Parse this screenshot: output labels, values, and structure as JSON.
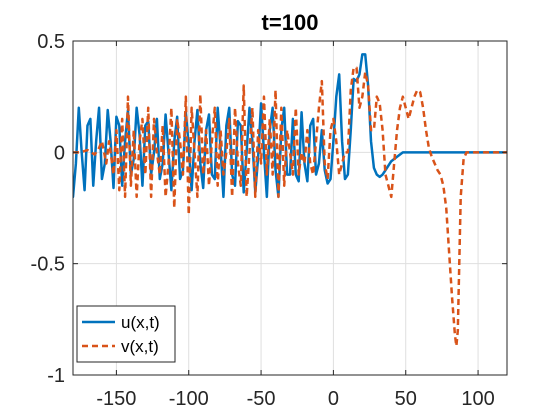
{
  "chart_data": {
    "type": "line",
    "title": "t=100",
    "xlabel": "",
    "ylabel": "",
    "xlim": [
      -180,
      120
    ],
    "ylim": [
      -1,
      0.5
    ],
    "xticks": [
      -150,
      -100,
      -50,
      0,
      50,
      100
    ],
    "xtick_labels": [
      "-150",
      "-100",
      "-50",
      "0",
      "50",
      "100"
    ],
    "yticks": [
      -1,
      -0.5,
      0,
      0.5
    ],
    "ytick_labels": [
      "-1",
      "-0.5",
      "0",
      "0.5"
    ],
    "grid": true,
    "legend_position": "bottom-left",
    "series": [
      {
        "name": "u(x,t)",
        "color": "#0072BD",
        "style": "solid",
        "x": [
          -180,
          -178,
          -176,
          -174,
          -172,
          -170,
          -168,
          -166,
          -164,
          -162,
          -160,
          -158,
          -156,
          -154,
          -152,
          -150,
          -148,
          -146,
          -144,
          -142,
          -140,
          -138,
          -136,
          -134,
          -132,
          -130,
          -128,
          -126,
          -124,
          -122,
          -120,
          -118,
          -116,
          -114,
          -112,
          -110,
          -108,
          -106,
          -104,
          -102,
          -100,
          -98,
          -96,
          -94,
          -92,
          -90,
          -88,
          -86,
          -84,
          -82,
          -80,
          -78,
          -76,
          -74,
          -72,
          -70,
          -68,
          -66,
          -64,
          -62,
          -60,
          -58,
          -56,
          -54,
          -52,
          -50,
          -48,
          -46,
          -44,
          -42,
          -40,
          -38,
          -36,
          -34,
          -32,
          -30,
          -28,
          -26,
          -24,
          -22,
          -20,
          -18,
          -16,
          -14,
          -12,
          -10,
          -8,
          -6,
          -4,
          -2,
          0,
          2,
          4,
          6,
          8,
          10,
          12,
          14,
          16,
          18,
          20,
          22,
          24,
          26,
          28,
          30,
          32,
          34,
          36,
          38,
          40,
          44,
          48,
          52,
          56,
          60,
          64,
          70,
          80,
          90,
          100,
          110,
          120
        ],
        "y": [
          -0.2,
          -0.05,
          0.2,
          0.0,
          -0.17,
          0.12,
          0.15,
          -0.15,
          0.05,
          0.2,
          -0.12,
          -0.05,
          0.19,
          0.05,
          -0.16,
          0.16,
          0.12,
          -0.15,
          0.05,
          0.19,
          -0.1,
          -0.03,
          0.2,
          0.08,
          -0.15,
          0.12,
          0.14,
          -0.1,
          0.0,
          0.15,
          -0.12,
          -0.05,
          0.17,
          0.0,
          -0.17,
          0.05,
          0.16,
          -0.12,
          -0.08,
          0.18,
          0.03,
          -0.17,
          0.05,
          0.19,
          -0.05,
          -0.16,
          0.1,
          0.17,
          -0.1,
          -0.12,
          0.2,
          0.02,
          -0.2,
          0.12,
          0.2,
          -0.1,
          -0.15,
          0.14,
          0.12,
          -0.18,
          0.0,
          0.2,
          0.05,
          -0.18,
          -0.02,
          0.22,
          0.0,
          -0.2,
          0.1,
          0.2,
          -0.08,
          -0.2,
          0.1,
          0.2,
          -0.1,
          -0.1,
          0.15,
          -0.1,
          -0.13,
          0.18,
          -0.05,
          -0.13,
          0.12,
          0.15,
          -0.1,
          -0.05,
          0.1,
          -0.08,
          -0.14,
          -0.12,
          0.05,
          0.25,
          0.35,
          0.05,
          -0.12,
          -0.1,
          0.1,
          0.33,
          0.32,
          0.35,
          0.44,
          0.44,
          0.3,
          0.05,
          -0.07,
          -0.1,
          -0.11,
          -0.1,
          -0.08,
          -0.06,
          -0.04,
          -0.02,
          0.0,
          0.0,
          0.0,
          0.0,
          0.0,
          0.0,
          0.0,
          0.0,
          0.0,
          0.0,
          0.0
        ]
      },
      {
        "name": "v(x,t)",
        "color": "#D95319",
        "style": "dashed",
        "x": [
          -180,
          -175,
          -170,
          -165,
          -162,
          -160,
          -157,
          -155,
          -152,
          -150,
          -148,
          -146,
          -144,
          -142,
          -140,
          -138,
          -136,
          -134,
          -132,
          -130,
          -128,
          -126,
          -124,
          -122,
          -120,
          -118,
          -116,
          -114,
          -112,
          -110,
          -108,
          -106,
          -104,
          -102,
          -100,
          -98,
          -96,
          -94,
          -92,
          -90,
          -88,
          -86,
          -84,
          -82,
          -80,
          -78,
          -76,
          -74,
          -72,
          -70,
          -68,
          -66,
          -64,
          -62,
          -60,
          -58,
          -56,
          -54,
          -52,
          -50,
          -48,
          -46,
          -44,
          -42,
          -40,
          -38,
          -36,
          -34,
          -32,
          -30,
          -28,
          -26,
          -24,
          -22,
          -20,
          -18,
          -16,
          -14,
          -12,
          -10,
          -8,
          -6,
          -4,
          -2,
          0,
          2,
          4,
          6,
          8,
          10,
          12,
          14,
          16,
          18,
          20,
          22,
          24,
          26,
          28,
          30,
          32,
          34,
          36,
          38,
          40,
          42,
          44,
          46,
          48,
          50,
          52,
          54,
          56,
          58,
          60,
          62,
          64,
          66,
          68,
          70,
          72,
          74,
          76,
          78,
          80,
          82,
          84,
          85,
          86,
          87,
          88,
          90,
          92,
          95,
          100,
          110,
          120
        ],
        "y": [
          0.0,
          0.0,
          0.01,
          -0.01,
          0.02,
          0.05,
          -0.05,
          0.05,
          -0.1,
          0.1,
          -0.17,
          0.15,
          -0.2,
          0.25,
          -0.15,
          0.1,
          -0.2,
          0.05,
          0.15,
          -0.1,
          0.2,
          -0.2,
          0.15,
          0.0,
          -0.1,
          0.12,
          -0.2,
          -0.05,
          0.2,
          -0.25,
          0.15,
          0.05,
          -0.1,
          0.25,
          -0.28,
          0.2,
          0.0,
          -0.2,
          0.26,
          -0.1,
          0.1,
          -0.15,
          0.05,
          0.2,
          -0.15,
          0.1,
          -0.1,
          0.0,
          0.15,
          -0.2,
          0.2,
          -0.05,
          -0.15,
          0.3,
          -0.2,
          0.0,
          0.2,
          -0.2,
          0.1,
          -0.05,
          0.25,
          -0.1,
          0.15,
          -0.1,
          0.28,
          -0.2,
          0.2,
          -0.15,
          0.1,
          0.0,
          -0.1,
          0.2,
          -0.1,
          0.0,
          -0.05,
          0.1,
          -0.05,
          -0.1,
          0.05,
          0.2,
          0.32,
          -0.05,
          -0.12,
          0.1,
          0.15,
          0.05,
          -0.1,
          -0.05,
          0.0,
          0.0,
          0.28,
          0.38,
          0.38,
          0.2,
          0.25,
          0.36,
          0.3,
          0.1,
          0.1,
          0.25,
          0.22,
          0.1,
          -0.1,
          -0.15,
          -0.2,
          -0.05,
          0.1,
          0.2,
          0.25,
          0.2,
          0.15,
          0.2,
          0.25,
          0.28,
          0.27,
          0.2,
          0.1,
          0.02,
          -0.02,
          -0.05,
          -0.08,
          -0.1,
          -0.15,
          -0.25,
          -0.45,
          -0.65,
          -0.82,
          -0.87,
          -0.8,
          -0.5,
          -0.2,
          -0.03,
          0.0,
          0.0,
          0.0,
          0.0,
          0.0
        ]
      }
    ]
  }
}
